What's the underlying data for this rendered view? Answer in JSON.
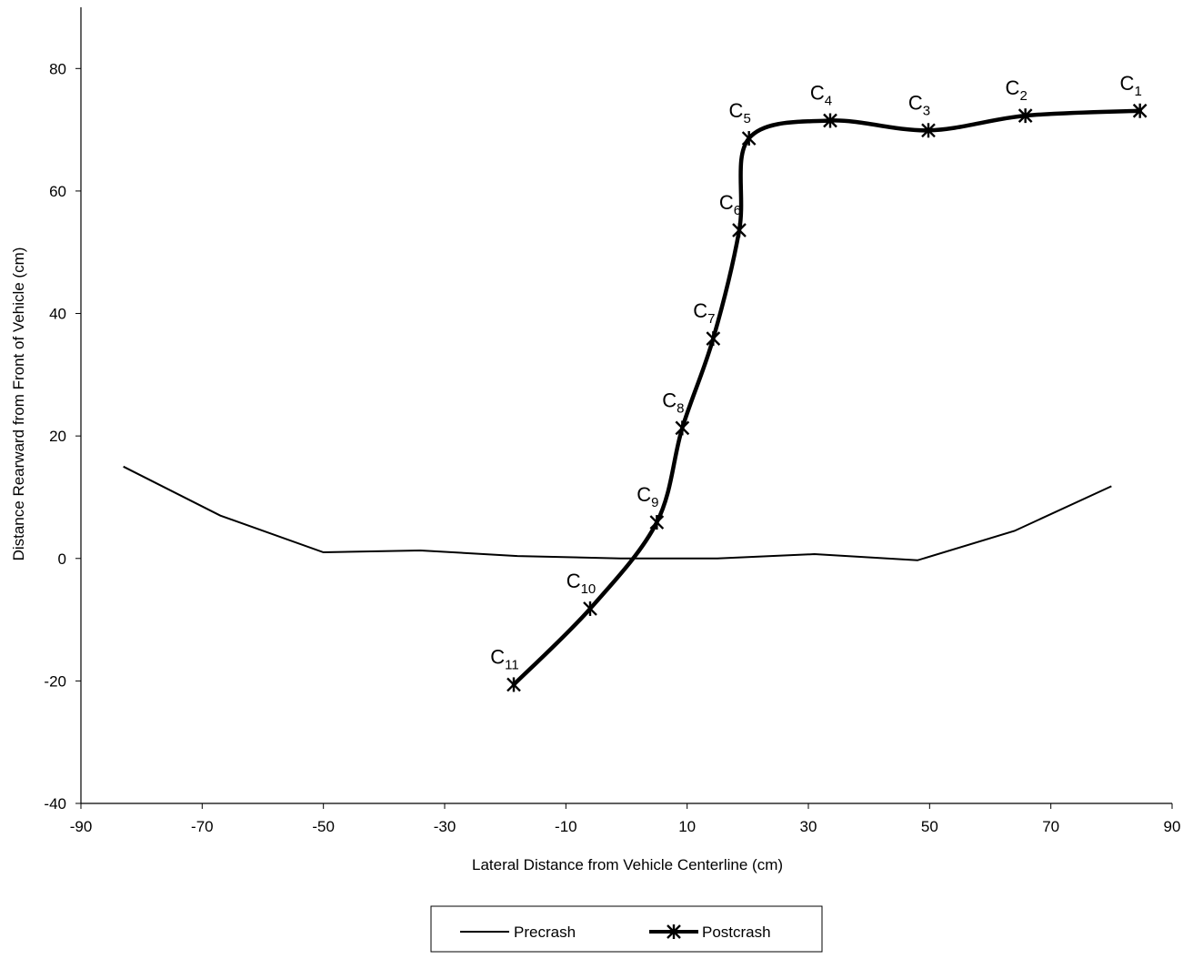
{
  "chart_data": {
    "type": "line",
    "xlabel": "Lateral Distance from Vehicle Centerline (cm)",
    "ylabel": "Distance Rearward from Front of Vehicle (cm)",
    "xlim": [
      -90,
      90
    ],
    "ylim": [
      -40,
      90
    ],
    "x_ticks": [
      -90,
      -70,
      -50,
      -30,
      -10,
      10,
      30,
      50,
      70,
      90
    ],
    "y_ticks": [
      -40,
      -20,
      0,
      20,
      40,
      60,
      80
    ],
    "grid": false,
    "legend_position": "bottom-center",
    "series": [
      {
        "name": "Precrash",
        "line_style": "thin",
        "marker": "none",
        "color": "#000000",
        "points": [
          {
            "x": -83,
            "y": 15
          },
          {
            "x": -67,
            "y": 7
          },
          {
            "x": -50,
            "y": 1
          },
          {
            "x": -34,
            "y": 1.3
          },
          {
            "x": -18,
            "y": 0.4
          },
          {
            "x": -1,
            "y": 0
          },
          {
            "x": 15,
            "y": 0
          },
          {
            "x": 31,
            "y": 0.7
          },
          {
            "x": 48,
            "y": -0.3
          },
          {
            "x": 64,
            "y": 4.5
          },
          {
            "x": 80,
            "y": 11.8
          }
        ]
      },
      {
        "name": "Postcrash",
        "line_style": "thick",
        "marker": "asterisk",
        "color": "#000000",
        "points": [
          {
            "x": 84.7,
            "y": 73.1,
            "label": "C",
            "sub": "1"
          },
          {
            "x": 65.8,
            "y": 72.3,
            "label": "C",
            "sub": "2"
          },
          {
            "x": 49.8,
            "y": 69.9,
            "label": "C",
            "sub": "3"
          },
          {
            "x": 33.6,
            "y": 71.5,
            "label": "C",
            "sub": "4"
          },
          {
            "x": 20.2,
            "y": 68.6,
            "label": "C",
            "sub": "5"
          },
          {
            "x": 18.6,
            "y": 53.6,
            "label": "C",
            "sub": "6"
          },
          {
            "x": 14.3,
            "y": 35.9,
            "label": "C",
            "sub": "7"
          },
          {
            "x": 9.2,
            "y": 21.3,
            "label": "C",
            "sub": "8"
          },
          {
            "x": 5,
            "y": 5.9,
            "label": "C",
            "sub": "9"
          },
          {
            "x": -6,
            "y": -8.2,
            "label": "C",
            "sub": "10"
          },
          {
            "x": -18.6,
            "y": -20.6,
            "label": "C",
            "sub": "11"
          }
        ]
      }
    ]
  }
}
